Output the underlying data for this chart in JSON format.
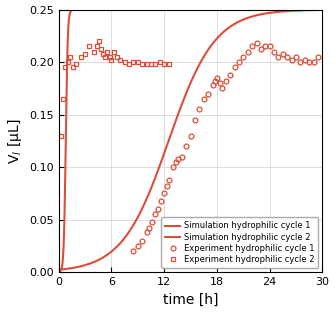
{
  "title": "",
  "xlabel": "time [h]",
  "ylabel": "V$_l$ [μL]",
  "xlim": [
    0,
    30
  ],
  "ylim": [
    0,
    0.25
  ],
  "xticks": [
    0,
    6,
    12,
    18,
    24,
    30
  ],
  "yticks": [
    0,
    0.05,
    0.1,
    0.15,
    0.2,
    0.25
  ],
  "sim1_color": "#d94f3a",
  "sim2_color": "#d94f3a",
  "exp1_color": "#d94f3a",
  "exp2_color": "#d94f3a",
  "legend_labels": [
    "Experiment hydrophilic cycle 1",
    "Experiment hydrophilic cycle 2",
    "Simulation hydrophilic cycle 1",
    "Simulation hydrophilic cycle 2"
  ],
  "figsize": [
    3.35,
    3.12
  ],
  "dpi": 100,
  "exp1_x": [
    8.5,
    9.0,
    9.5,
    10.0,
    10.3,
    10.6,
    11.0,
    11.3,
    11.6,
    12.0,
    12.3,
    12.6,
    13.0,
    13.3,
    13.6,
    14.0,
    14.5,
    15.0,
    15.5,
    16.0,
    16.5,
    17.0,
    17.5,
    17.8,
    18.0,
    18.3,
    18.6,
    19.0,
    19.5,
    20.0,
    20.5,
    21.0,
    21.5,
    22.0,
    22.5,
    23.0,
    23.5,
    24.0,
    24.5,
    25.0,
    25.5,
    26.0,
    26.5,
    27.0,
    27.5,
    28.0,
    28.5,
    29.0,
    29.5
  ],
  "exp1_y": [
    0.02,
    0.025,
    0.03,
    0.038,
    0.042,
    0.048,
    0.055,
    0.06,
    0.068,
    0.075,
    0.082,
    0.088,
    0.1,
    0.105,
    0.108,
    0.11,
    0.12,
    0.13,
    0.145,
    0.155,
    0.165,
    0.17,
    0.178,
    0.182,
    0.185,
    0.18,
    0.175,
    0.182,
    0.188,
    0.195,
    0.2,
    0.205,
    0.21,
    0.215,
    0.218,
    0.212,
    0.215,
    0.215,
    0.21,
    0.205,
    0.208,
    0.205,
    0.202,
    0.205,
    0.2,
    0.202,
    0.2,
    0.2,
    0.205
  ],
  "exp2_x": [
    0.3,
    0.5,
    0.7,
    1.0,
    1.3,
    1.6,
    2.0,
    2.5,
    3.0,
    3.5,
    4.0,
    4.3,
    4.6,
    4.8,
    5.0,
    5.3,
    5.5,
    5.8,
    6.0,
    6.3,
    6.6,
    7.0,
    7.5,
    8.0,
    8.5,
    9.0,
    9.5,
    10.0,
    10.5,
    11.0,
    11.5,
    12.0,
    12.5
  ],
  "exp2_y": [
    0.13,
    0.165,
    0.195,
    0.2,
    0.205,
    0.195,
    0.198,
    0.205,
    0.208,
    0.215,
    0.21,
    0.215,
    0.22,
    0.212,
    0.208,
    0.205,
    0.21,
    0.205,
    0.202,
    0.21,
    0.205,
    0.202,
    0.2,
    0.198,
    0.2,
    0.2,
    0.198,
    0.198,
    0.198,
    0.198,
    0.2,
    0.198,
    0.198
  ]
}
